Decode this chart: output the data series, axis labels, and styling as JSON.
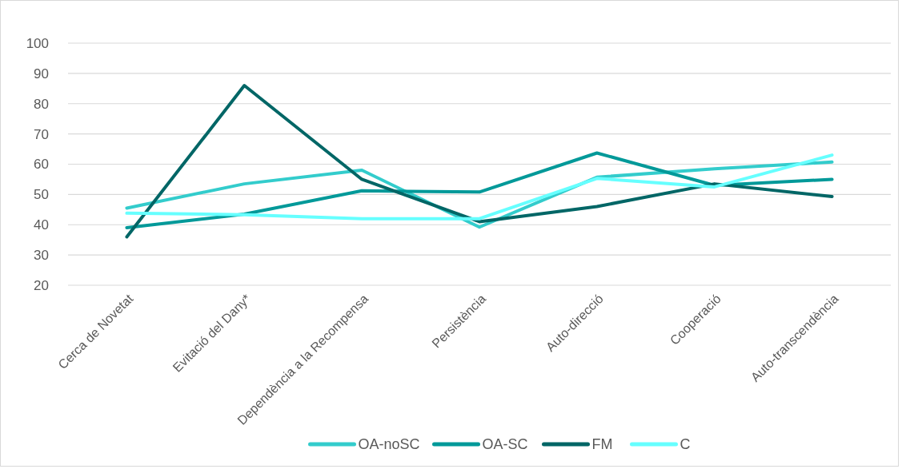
{
  "chart_data": {
    "type": "line",
    "categories": [
      "Cerca de Novetat",
      "Evitació del Dany*",
      "Dependència a la Recompensa",
      "Persistència",
      "Auto-direcció",
      "Cooperació",
      "Auto-transcendència"
    ],
    "series": [
      {
        "name": "OA-noSC",
        "color": "#33cccc",
        "values": [
          45.5,
          53.5,
          58,
          39.2,
          55.7,
          58.5,
          60.7
        ]
      },
      {
        "name": "OA-SC",
        "color": "#009999",
        "values": [
          39,
          43.5,
          51.2,
          50.8,
          63.7,
          53,
          55
        ]
      },
      {
        "name": "FM",
        "color": "#006666",
        "values": [
          36,
          86,
          55,
          41,
          46,
          53.5,
          49.3
        ]
      },
      {
        "name": "C",
        "color": "#66ffff",
        "values": [
          43.8,
          43.3,
          42,
          42,
          55.3,
          52.5,
          63
        ]
      }
    ],
    "ylim": [
      20,
      100
    ],
    "yticks": [
      20,
      30,
      40,
      50,
      60,
      70,
      80,
      90,
      100
    ],
    "grid": "y",
    "legend": "bottom",
    "marker": "none",
    "line_style": "solid"
  }
}
